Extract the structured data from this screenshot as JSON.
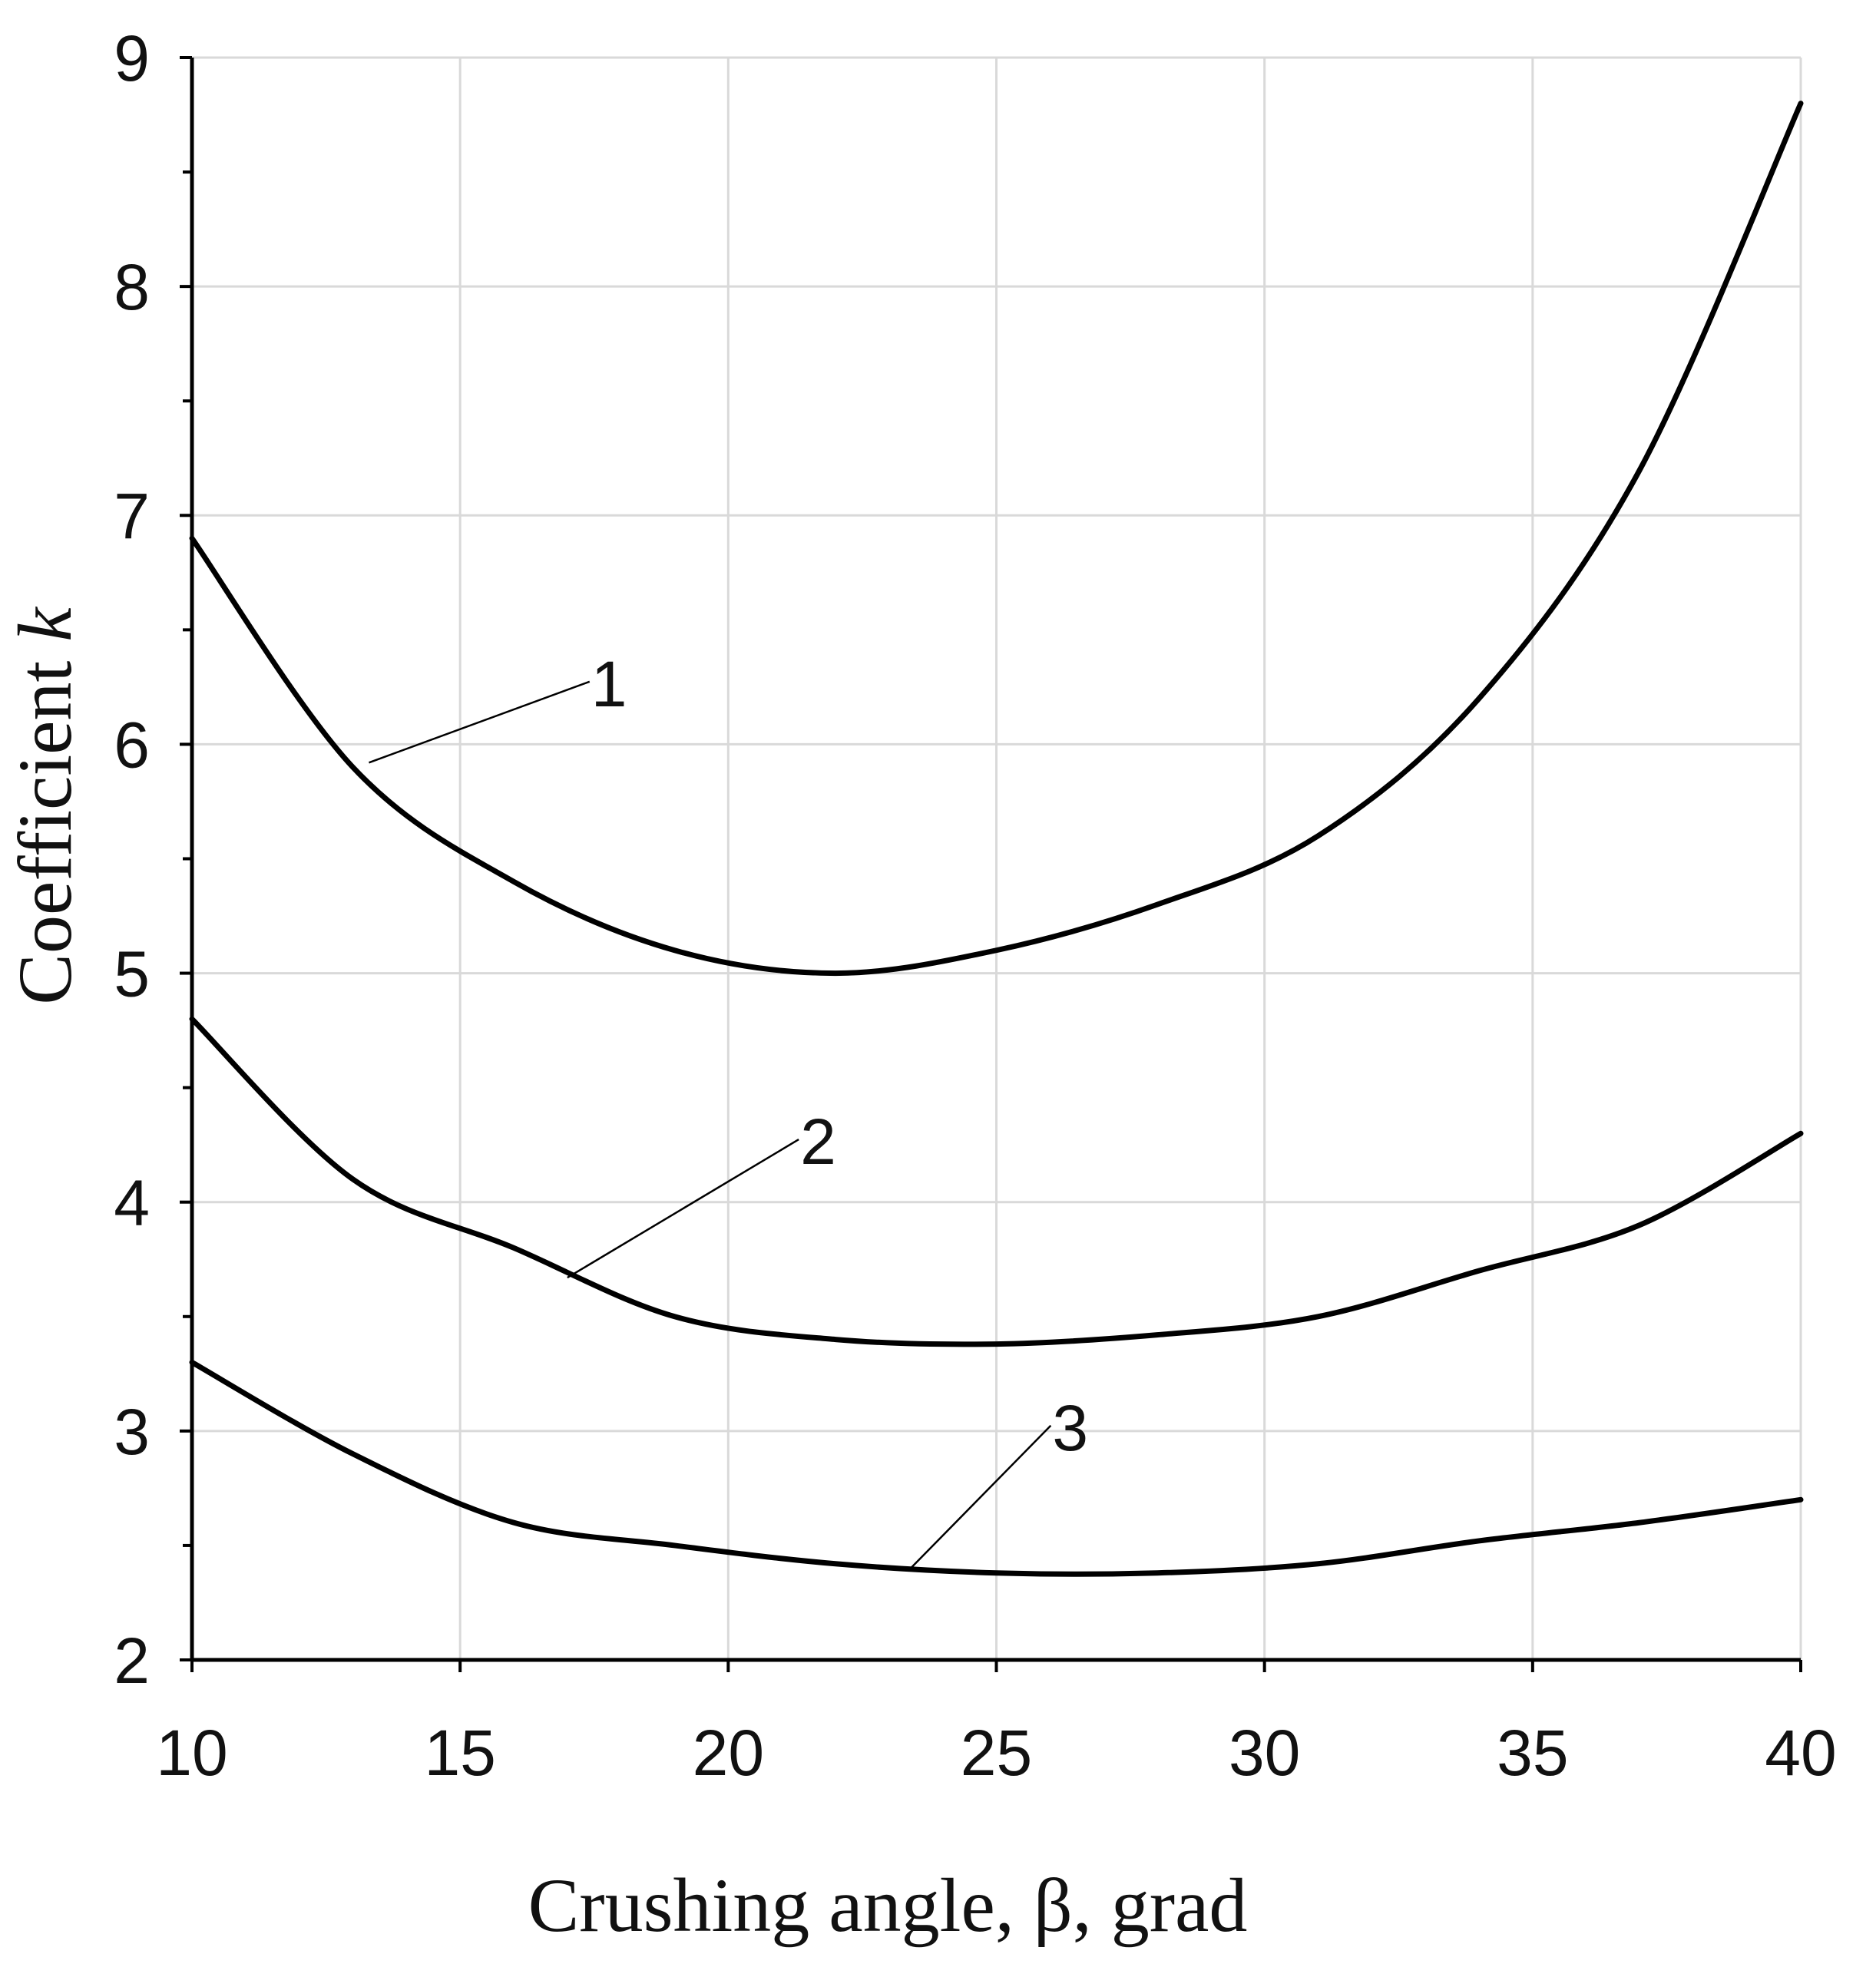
{
  "chart_data": {
    "type": "line",
    "title": "",
    "xlabel": "Crushing angle, β, grad",
    "ylabel_prefix": "Coefficient ",
    "ylabel_var": "k",
    "xlim": [
      10,
      40
    ],
    "ylim": [
      2,
      9
    ],
    "xticks": [
      10,
      15,
      20,
      25,
      30,
      35,
      40
    ],
    "yticks": [
      2,
      3,
      4,
      5,
      6,
      7,
      8,
      9
    ],
    "grid": true,
    "legend": "none",
    "series": [
      {
        "name": "1",
        "x": [
          10,
          13,
          16,
          19,
          22,
          25,
          28,
          31,
          34,
          37,
          40
        ],
        "y": [
          6.9,
          5.9,
          5.4,
          5.1,
          5.0,
          5.1,
          5.3,
          5.6,
          6.2,
          7.2,
          8.8
        ],
        "label_anchor": [
          13.3,
          5.92
        ],
        "label_at": [
          17.3,
          6.2
        ]
      },
      {
        "name": "2",
        "x": [
          10,
          13,
          16,
          19,
          22,
          25,
          28,
          31,
          34,
          37,
          40
        ],
        "y": [
          4.8,
          4.1,
          3.8,
          3.5,
          3.4,
          3.38,
          3.42,
          3.5,
          3.7,
          3.9,
          4.3
        ],
        "label_anchor": [
          17.0,
          3.67
        ],
        "label_at": [
          21.2,
          4.2
        ]
      },
      {
        "name": "3",
        "x": [
          10,
          13,
          16,
          19,
          22,
          25,
          28,
          31,
          34,
          37,
          40
        ],
        "y": [
          3.3,
          2.9,
          2.6,
          2.5,
          2.42,
          2.38,
          2.38,
          2.42,
          2.52,
          2.6,
          2.7
        ],
        "label_anchor": [
          23.4,
          2.4
        ],
        "label_at": [
          25.9,
          2.95
        ]
      }
    ]
  }
}
